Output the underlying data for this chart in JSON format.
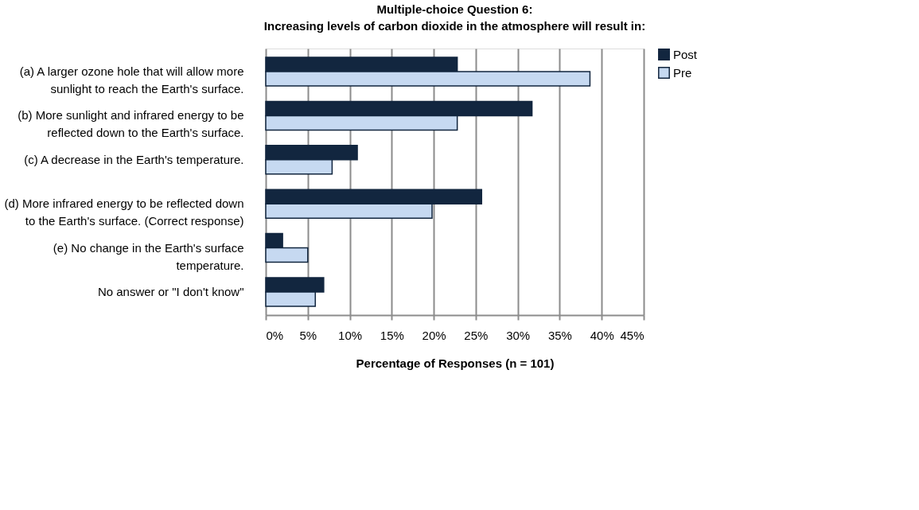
{
  "chart_data": {
    "type": "bar",
    "orientation": "horizontal",
    "title": "Multiple-choice Question 6:",
    "subtitle": "Increasing levels of carbon dioxide in the atmosphere will result in:",
    "xlabel": "Percentage of Responses (n = 101)",
    "categories": [
      "(a) A larger ozone hole that will allow more sunlight to reach the Earth's surface.",
      "(b) More sunlight and infrared energy to be reflected down to the Earth's surface.",
      "(c) A decrease in the Earth's temperature.",
      "(d) More infrared energy to be reflected down to the Earth's surface. (Correct response)",
      "(e) No change in the Earth's surface temperature.",
      "No answer or \"I don't know\""
    ],
    "series": [
      {
        "name": "Post",
        "color": "#12263f",
        "values": [
          22.8,
          31.7,
          10.9,
          25.7,
          2.0,
          6.9
        ]
      },
      {
        "name": "Pre",
        "color": "#c6d9f1",
        "values": [
          38.6,
          22.8,
          7.9,
          19.8,
          5.0,
          5.9
        ]
      }
    ],
    "xlim": [
      0,
      45
    ],
    "xticks": [
      {
        "value": 0,
        "label": "0%"
      },
      {
        "value": 5,
        "label": "5%"
      },
      {
        "value": 10,
        "label": "10%"
      },
      {
        "value": 15,
        "label": "15%"
      },
      {
        "value": 20,
        "label": "20%"
      },
      {
        "value": 25,
        "label": "25%"
      },
      {
        "value": 30,
        "label": "30%"
      },
      {
        "value": 35,
        "label": "35%"
      },
      {
        "value": 40,
        "label": "40%"
      },
      {
        "value": 45,
        "label": "45%"
      }
    ],
    "grid": "x",
    "legend": "right"
  }
}
